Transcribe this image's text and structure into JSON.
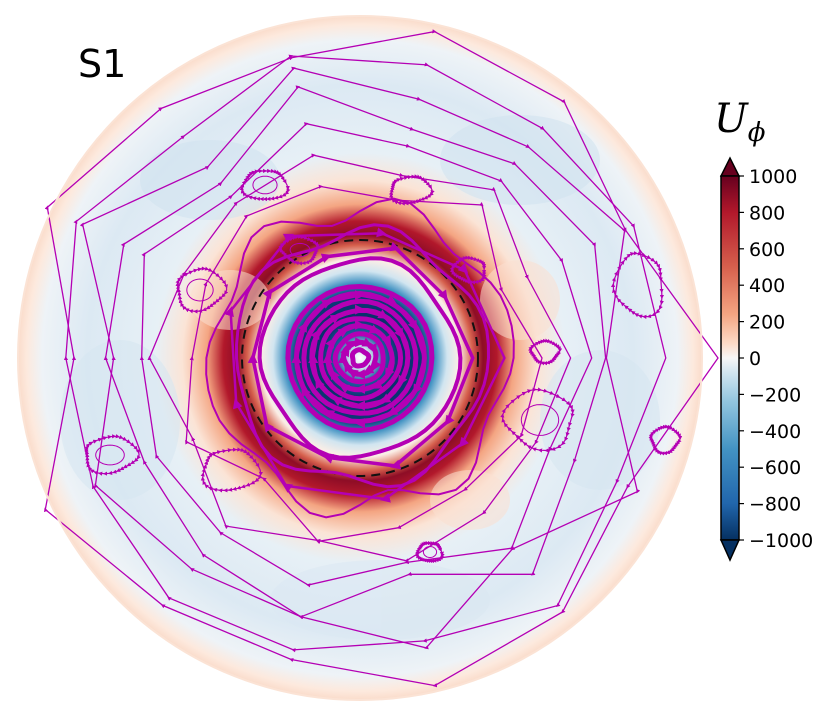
{
  "panel_label": "S1",
  "colorbar": {
    "title_main": "U",
    "title_sub": "ϕ",
    "ticks": [
      "1000",
      "800",
      "600",
      "400",
      "200",
      "0",
      "−200",
      "−400",
      "−600",
      "−800",
      "−1000"
    ],
    "range": [
      -1000,
      1000
    ],
    "extend": "both",
    "colormap": "RdBu_r"
  },
  "chart_data": {
    "type": "heatmap",
    "projection": "polar (top view of disk)",
    "field": "U_phi",
    "vmin": -1000,
    "vmax": 1000,
    "overlay": "streamlines with arrowheads",
    "streamline_color": "#b400b4",
    "contour_style": "black dashed circle",
    "colors": {
      "strong_negative": "#08306b",
      "negative": "#2166ac",
      "weak_negative": "#d1e5f0",
      "zero": "#f7f7f7",
      "weak_positive": "#fddbc7",
      "positive": "#d6604d",
      "strong_positive": "#67001f"
    }
  }
}
